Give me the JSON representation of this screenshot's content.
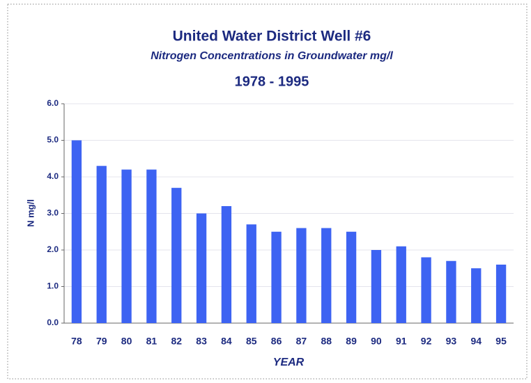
{
  "chart_data": {
    "type": "bar",
    "title": "United Water District Well #6",
    "subtitle": "Nitrogen Concentrations in Groundwater mg/l",
    "period": "1978 - 1995",
    "y_label": "N mg/l",
    "x_label": "YEAR",
    "categories": [
      "78",
      "79",
      "80",
      "81",
      "82",
      "83",
      "84",
      "85",
      "86",
      "87",
      "88",
      "89",
      "90",
      "91",
      "92",
      "93",
      "94",
      "95"
    ],
    "values": [
      5.0,
      4.3,
      4.2,
      4.2,
      3.7,
      3.0,
      3.2,
      2.7,
      2.5,
      2.6,
      2.6,
      2.5,
      2.0,
      2.1,
      1.8,
      1.7,
      1.5,
      1.6
    ],
    "color": "#3d63f2",
    "ylim": [
      0,
      6
    ],
    "yticks": [
      {
        "value": 0,
        "label": "0.0"
      },
      {
        "value": 1,
        "label": "1.0"
      },
      {
        "value": 2,
        "label": "2.0"
      },
      {
        "value": 3,
        "label": "3.0"
      },
      {
        "value": 4,
        "label": "4.0"
      },
      {
        "value": 5,
        "label": "5.0"
      },
      {
        "value": 6,
        "label": "6.0"
      }
    ],
    "grid": true
  }
}
